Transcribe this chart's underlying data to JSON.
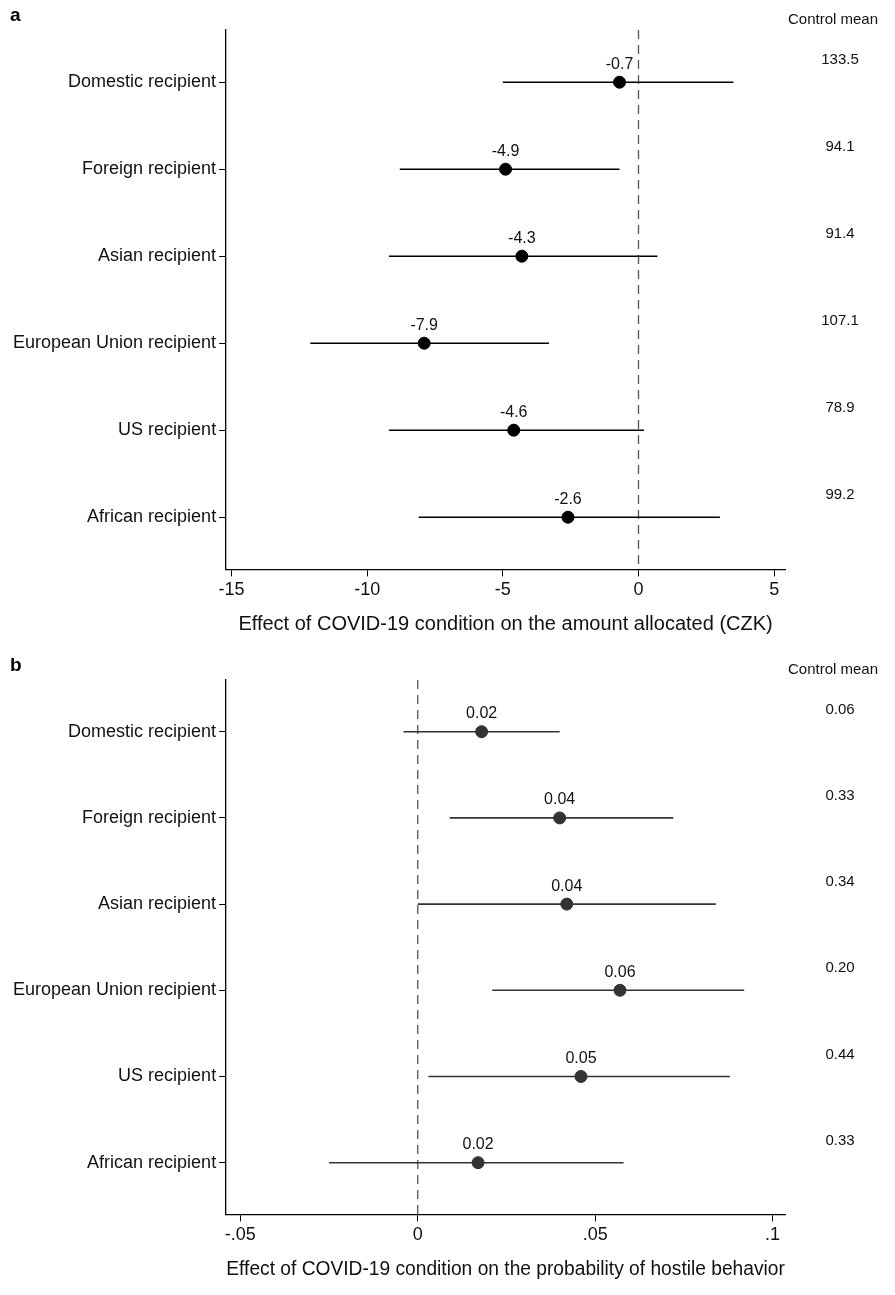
{
  "chart_data": [
    {
      "type": "scatter",
      "orientation": "horizontal",
      "title": "a",
      "xlabel": "Effect of COVID-19 condition on the amount allocated (CZK)",
      "categories": [
        "Domestic recipient",
        "Foreign recipient",
        "Asian recipient",
        "European Union recipient",
        "US recipient",
        "African recipient"
      ],
      "values": [
        -0.7,
        -4.9,
        -4.3,
        -7.9,
        -4.6,
        -2.6
      ],
      "errors": [
        [
          -5.0,
          3.5
        ],
        [
          -8.8,
          -0.7
        ],
        [
          -9.2,
          0.7
        ],
        [
          -12.1,
          -3.3
        ],
        [
          -9.2,
          0.2
        ],
        [
          -8.1,
          3.0
        ]
      ],
      "color": "#000000",
      "marker": "circle",
      "data_labels": true,
      "xlim": [
        -15.2,
        5.4
      ],
      "xticks": [
        -15,
        -10,
        -5,
        0,
        5
      ],
      "grid": false,
      "legend": false,
      "ref_lines": [
        {
          "axis": "x",
          "value": 0,
          "line_style": "dashed",
          "color": "#555555"
        }
      ],
      "annotations": [
        "Control mean",
        "133.5",
        "94.1",
        "91.4",
        "107.1",
        "78.9",
        "99.2"
      ]
    },
    {
      "type": "scatter",
      "orientation": "horizontal",
      "title": "b",
      "xlabel": "Effect of COVID-19 condition on the probability of hostile behavior",
      "categories": [
        "Domestic recipient",
        "Foreign recipient",
        "Asian recipient",
        "European Union recipient",
        "US recipient",
        "African recipient"
      ],
      "values": [
        0.018,
        0.04,
        0.042,
        0.057,
        0.046,
        0.017
      ],
      "value_labels": [
        "0.02",
        "0.04",
        "0.04",
        "0.06",
        "0.05",
        "0.02"
      ],
      "errors": [
        [
          -0.004,
          0.04
        ],
        [
          0.009,
          0.072
        ],
        [
          0.0,
          0.084
        ],
        [
          0.021,
          0.092
        ],
        [
          0.003,
          0.088
        ],
        [
          -0.025,
          0.058
        ]
      ],
      "color": "#333333",
      "marker": "circle",
      "xlim": [
        -0.054,
        0.1035
      ],
      "xticks": [
        {
          "value": -0.05,
          "label": "-.05"
        },
        0,
        {
          "value": 0.05,
          "label": ".05"
        },
        {
          "value": 0.1,
          "label": ".1"
        }
      ],
      "grid": false,
      "legend": false,
      "ref_lines": [
        {
          "axis": "x",
          "value": 0,
          "line_style": "dashed",
          "color": "#555555"
        }
      ],
      "annotations": [
        "Control mean",
        "0.06",
        "0.33",
        "0.34",
        "0.20",
        "0.44",
        "0.33"
      ]
    }
  ]
}
